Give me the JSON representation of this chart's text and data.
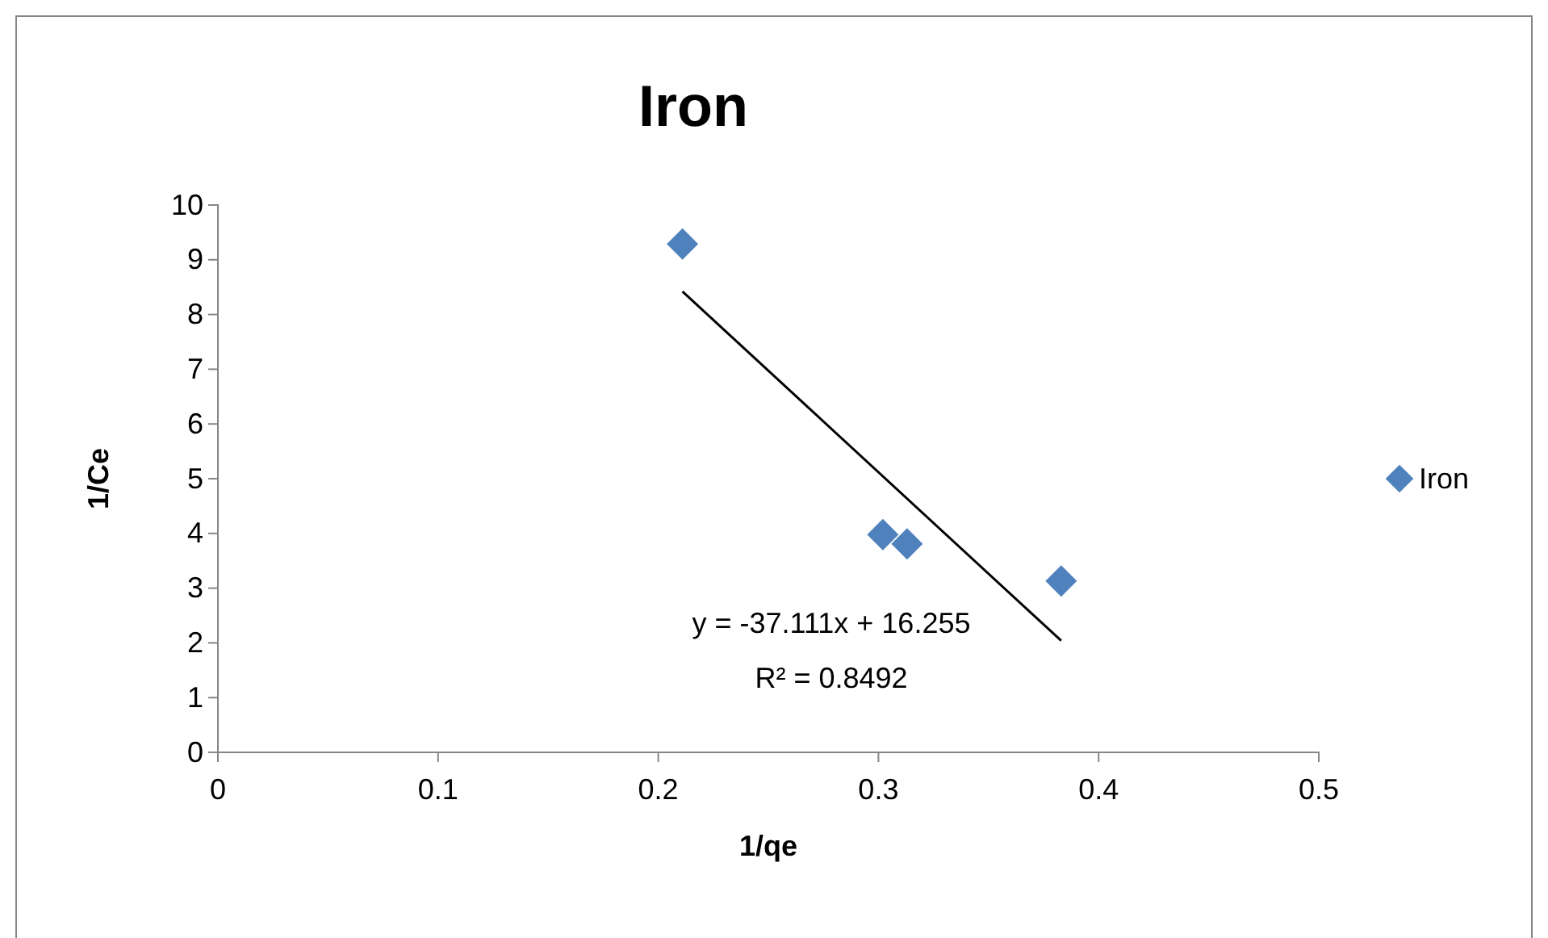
{
  "chart_data": {
    "type": "scatter",
    "title": "Iron",
    "xlabel": "1/qe",
    "ylabel": "1/Ce",
    "xlim": [
      0,
      0.5
    ],
    "xticks": [
      0,
      0.1,
      0.2,
      0.3,
      0.4,
      0.5
    ],
    "ylim": [
      0,
      10
    ],
    "yticks": [
      0,
      1,
      2,
      3,
      4,
      5,
      6,
      7,
      8,
      9,
      10
    ],
    "grid": false,
    "legend": "right",
    "series": [
      {
        "name": "Iron",
        "marker": "diamond",
        "color": "#4f81bd",
        "x": [
          0.211,
          0.302,
          0.313,
          0.383
        ],
        "values": [
          9.29,
          3.98,
          3.81,
          3.13
        ]
      },
      {
        "type": "line",
        "marker": "none",
        "line_style": "solid",
        "color": "#000000",
        "x": [
          0.211,
          0.383
        ],
        "values": [
          8.42,
          2.04
        ]
      }
    ],
    "annotations": [
      "y = -37.111x + 16.255",
      "R² = 0.8492"
    ]
  }
}
